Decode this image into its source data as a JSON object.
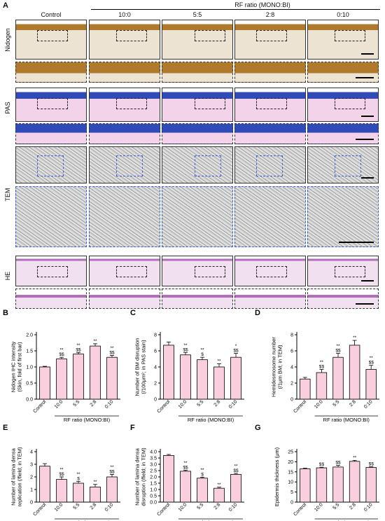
{
  "figure": {
    "panel_a_label": "A",
    "header_group": "RF ratio (MONO:BI)",
    "columns": [
      "Control",
      "10:0",
      "5:5",
      "2:8",
      "0:10"
    ],
    "rows": [
      "Nidogen",
      "PAS",
      "TEM",
      "HE"
    ]
  },
  "chart_data": [
    {
      "panel": "B",
      "type": "bar",
      "categories": [
        "Control",
        "10:0",
        "5:5",
        "2:8",
        "0:10"
      ],
      "values": [
        1.0,
        1.25,
        1.4,
        1.65,
        1.3
      ],
      "errors": [
        0.02,
        0.05,
        0.05,
        0.07,
        0.06
      ],
      "sig": [
        "",
        "**\n$$",
        "**\n$$",
        "**",
        "**\n$$"
      ],
      "ylabel": "Nidogen IHC intensity\n(Skin, fold of first bar)",
      "xlabel": "RF ratio (MONO:BI)",
      "yticks": [
        "0.0",
        "0.5",
        "1.0",
        "1.5",
        "2.0"
      ],
      "ylim": [
        0,
        2.0
      ]
    },
    {
      "panel": "C",
      "type": "bar",
      "categories": [
        "Control",
        "10:0",
        "5:5",
        "2:8",
        "0:10"
      ],
      "values": [
        6.7,
        5.5,
        4.9,
        4.0,
        5.2
      ],
      "errors": [
        0.4,
        0.3,
        0.3,
        0.4,
        0.5
      ],
      "sig": [
        "",
        "**\n$$",
        "**\n$",
        "**",
        "*\n$$"
      ],
      "ylabel": "Number of BM disruption\n(/100μm²; in PAS stain)",
      "xlabel": "RF ratio (MONO:BI)",
      "yticks": [
        "0",
        "2",
        "4",
        "6",
        "8"
      ],
      "ylim": [
        0,
        8
      ]
    },
    {
      "panel": "D",
      "type": "bar",
      "categories": [
        "Control",
        "10:0",
        "5:5",
        "2:8",
        "0:10"
      ],
      "values": [
        2.5,
        3.3,
        5.2,
        6.7,
        3.7
      ],
      "errors": [
        0.2,
        0.4,
        0.5,
        0.6,
        0.5
      ],
      "sig": [
        "",
        "**\n$$",
        "**\n$$",
        "**",
        "**\n$$"
      ],
      "ylabel": "Hemidesmosome number\n(/1μm BM; in TEM)",
      "xlabel": "RF ratio (MONO:BI)",
      "yticks": [
        "0",
        "2",
        "4",
        "6",
        "8"
      ],
      "ylim": [
        0,
        8
      ]
    },
    {
      "panel": "E",
      "type": "bar",
      "categories": [
        "Control",
        "10:0",
        "5:5",
        "2:8",
        "0:10"
      ],
      "values": [
        2.85,
        1.8,
        1.5,
        1.2,
        2.0
      ],
      "errors": [
        0.2,
        0.2,
        0.15,
        0.2,
        0.2
      ],
      "sig": [
        "",
        "**\n$$",
        "**\n$",
        "**",
        "**\n$$"
      ],
      "ylabel": "Number of lamina densa\nreplication (/field; in TEM)",
      "xlabel": "RF ratio (MONO:BI)",
      "yticks": [
        "0",
        "1",
        "2",
        "3",
        "4"
      ],
      "ylim": [
        0,
        4
      ]
    },
    {
      "panel": "F",
      "type": "bar",
      "categories": [
        "Control",
        "10:0",
        "5:5",
        "2:8",
        "0:10"
      ],
      "values": [
        3.7,
        2.45,
        1.9,
        1.1,
        2.2
      ],
      "errors": [
        0.08,
        0.08,
        0.08,
        0.08,
        0.08
      ],
      "sig": [
        "",
        "**\n$$",
        "**\n$",
        "**",
        "**\n$$"
      ],
      "ylabel": "Number of lamina densa\ndisruption (/field; in TEM)",
      "xlabel": "RF ratio (MONO:BI)",
      "yticks": [
        "0.0",
        "0.5",
        "1.0",
        "1.5",
        "2.0",
        "2.5",
        "3.0",
        "3.5",
        "4.0"
      ],
      "ylim": [
        0,
        4.0
      ]
    },
    {
      "panel": "G",
      "type": "bar",
      "categories": [
        "Control",
        "10:0",
        "5:5",
        "2:8",
        "0:10"
      ],
      "values": [
        16.5,
        17.0,
        17.4,
        20.2,
        17.2
      ],
      "errors": [
        0.3,
        0.3,
        0.8,
        0.5,
        0.3
      ],
      "sig": [
        "",
        "$$",
        "$$",
        "**",
        "$$"
      ],
      "ylabel": "Epidermis thickness (μm)",
      "xlabel": "RF ratio (MONO:BI)",
      "yticks": [
        "0",
        "5",
        "10",
        "15",
        "20",
        "25"
      ],
      "ylim": [
        0,
        25
      ]
    }
  ],
  "colors": {
    "bar_fill": "#f9cfe0",
    "bar_stroke": "#000000",
    "nidogen_bg": "#ece3d2",
    "nidogen_stain": "#b07a2c",
    "pas_bg": "#f3d3ea",
    "pas_blue": "#2f4bb8",
    "tem_gray": "#8a8a8a",
    "he_bg": "#f1e0f0",
    "he_stain": "#b06fb8",
    "blue_dash": "#3b5bdb"
  }
}
